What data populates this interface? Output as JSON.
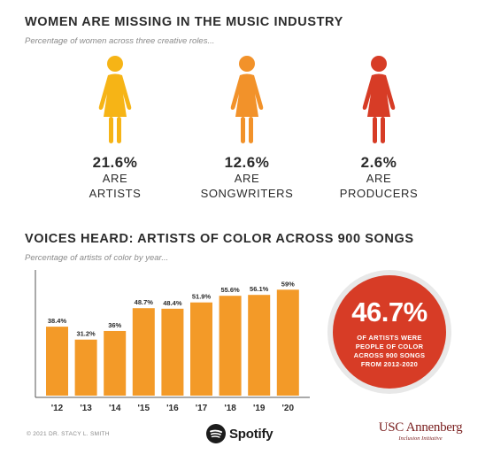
{
  "section1": {
    "title": "WOMEN ARE MISSING IN THE MUSIC INDUSTRY",
    "subtitle": "Percentage of women across three creative roles...",
    "roles": [
      {
        "percent": "21.6%",
        "are": "ARE",
        "role": "ARTISTS",
        "icon": "woman-icon",
        "color": "#f6b416"
      },
      {
        "percent": "12.6%",
        "are": "ARE",
        "role": "SONGWRITERS",
        "icon": "woman-icon",
        "color": "#f2922a"
      },
      {
        "percent": "2.6%",
        "are": "ARE",
        "role": "PRODUCERS",
        "icon": "woman-icon",
        "color": "#d73c26"
      }
    ]
  },
  "section2": {
    "title": "VOICES HEARD: ARTISTS OF COLOR ACROSS 900 SONGS",
    "subtitle": "Percentage of artists of color by year..."
  },
  "chart_data": {
    "type": "bar",
    "categories": [
      "'12",
      "'13",
      "'14",
      "'15",
      "'16",
      "'17",
      "'18",
      "'19",
      "'20"
    ],
    "values": [
      38.4,
      31.2,
      36,
      48.7,
      48.4,
      51.9,
      55.6,
      56.1,
      59
    ],
    "value_labels": [
      "38.4%",
      "31.2%",
      "36%",
      "48.7%",
      "48.4%",
      "51.9%",
      "55.6%",
      "56.1%",
      "59%"
    ],
    "ylim": [
      0,
      70
    ],
    "grid": false,
    "bar_color": "#f39a28",
    "axis_color": "#555555"
  },
  "callout": {
    "value": "46.7%",
    "lines": [
      "OF ARTISTS WERE",
      "PEOPLE OF COLOR",
      "ACROSS 900 SONGS",
      "FROM 2012-2020"
    ],
    "color": "#d73c26"
  },
  "footer": {
    "copyright": "© 2021 DR. STACY L. SMITH",
    "spotify_label": "Spotify",
    "spotify_icon": "spotify-logo-icon",
    "usc_main": "USC Annenberg",
    "usc_sub": "Inclusion Initiative",
    "usc_color": "#7a1f1f"
  }
}
